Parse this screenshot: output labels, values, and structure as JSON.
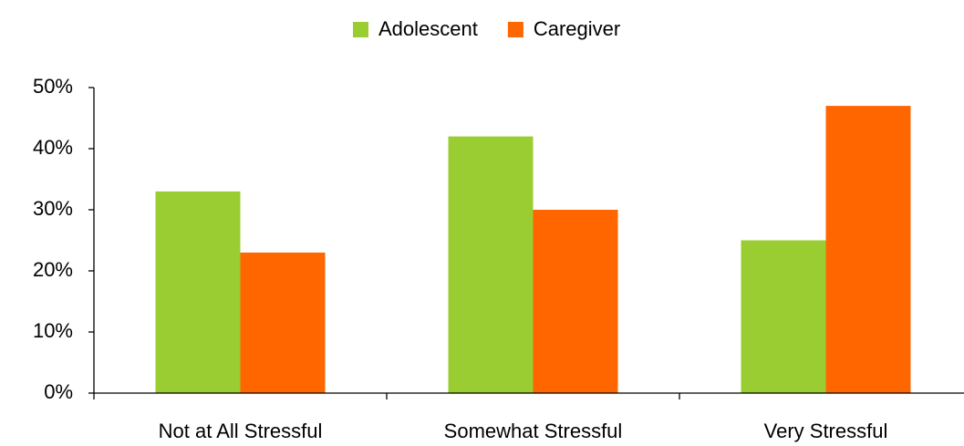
{
  "chart_data": {
    "type": "bar",
    "categories": [
      "Not at All Stressful",
      "Somewhat Stressful",
      "Very Stressful"
    ],
    "series": [
      {
        "name": "Adolescent",
        "color": "#9acd32",
        "values": [
          33,
          42,
          25
        ]
      },
      {
        "name": "Caregiver",
        "color": "#ff6600",
        "values": [
          23,
          30,
          47
        ]
      }
    ],
    "ylim": [
      0,
      50
    ],
    "yticks": [
      {
        "value": 0,
        "label": "0%"
      },
      {
        "value": 10,
        "label": "10%"
      },
      {
        "value": 20,
        "label": "20%"
      },
      {
        "value": 30,
        "label": "30%"
      },
      {
        "value": 40,
        "label": "40%"
      },
      {
        "value": 50,
        "label": "50%"
      }
    ],
    "legend": "top"
  }
}
